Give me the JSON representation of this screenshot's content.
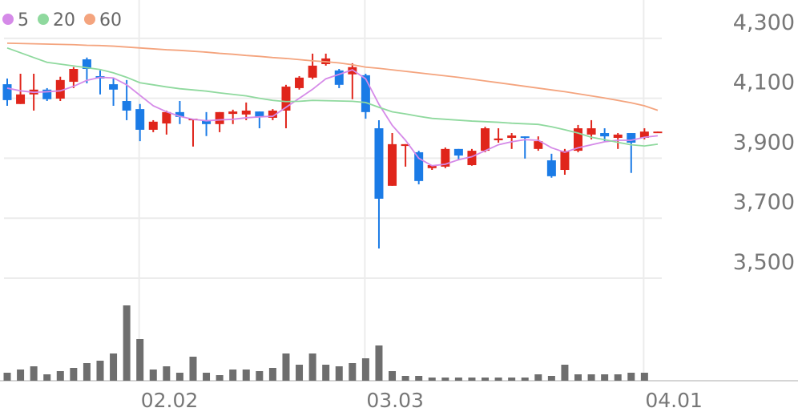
{
  "chart_data": {
    "type": "candlestick",
    "categories": [
      null,
      null,
      null,
      null,
      null,
      null,
      null,
      null,
      null,
      null,
      "02.02",
      null,
      null,
      null,
      null,
      null,
      null,
      null,
      null,
      null,
      null,
      null,
      null,
      null,
      null,
      null,
      null,
      "03.03",
      null,
      null,
      null,
      null,
      null,
      null,
      null,
      null,
      null,
      null,
      null,
      null,
      null,
      null,
      null,
      null,
      null,
      null,
      null,
      null,
      "04.01",
      null
    ],
    "open": [
      4147,
      4081,
      4113,
      4129,
      4099,
      4155,
      4230,
      4174,
      4147,
      4091,
      4064,
      3995,
      4016,
      4054,
      4027,
      4027,
      4014,
      4048,
      4046,
      4056,
      4035,
      4059,
      4134,
      4169,
      4214,
      4193,
      4180,
      4177,
      4000,
      3808,
      3941,
      3920,
      3867,
      3872,
      3931,
      3877,
      3925,
      3960,
      3968,
      3973,
      3931,
      3893,
      3861,
      3925,
      3979,
      3984,
      3968,
      3984,
      3968,
      3987
    ],
    "high": [
      4166,
      4182,
      4182,
      4134,
      4172,
      4204,
      4236,
      4193,
      4166,
      4161,
      4081,
      4027,
      4059,
      4091,
      4032,
      4054,
      4054,
      4062,
      4086,
      4056,
      4064,
      4145,
      4174,
      4249,
      4249,
      4198,
      4217,
      4182,
      4027,
      3984,
      3947,
      3925,
      3877,
      3936,
      3931,
      3931,
      4005,
      4000,
      3984,
      3973,
      3973,
      3915,
      3931,
      4011,
      4027,
      4000,
      3984,
      3984,
      4000,
      3989
    ],
    "low": [
      4075,
      4081,
      4059,
      4091,
      4091,
      4134,
      4150,
      4113,
      4075,
      4027,
      3957,
      3987,
      3979,
      4014,
      3939,
      3974,
      3987,
      4014,
      4027,
      4000,
      4027,
      4000,
      4129,
      4164,
      4209,
      4134,
      4097,
      4032,
      3599,
      3808,
      3872,
      3813,
      3861,
      3867,
      3893,
      3875,
      3920,
      3952,
      3931,
      3899,
      3925,
      3835,
      3845,
      3920,
      3963,
      3957,
      3931,
      3851,
      3963,
      3987
    ],
    "close": [
      4094,
      4113,
      4129,
      4097,
      4161,
      4198,
      4198,
      4166,
      4129,
      4059,
      3995,
      4022,
      4054,
      4038,
      4032,
      4014,
      4054,
      4056,
      4059,
      4038,
      4059,
      4139,
      4169,
      4209,
      4233,
      4145,
      4204,
      4054,
      3765,
      3947,
      3947,
      3824,
      3877,
      3931,
      3909,
      3925,
      4000,
      3966,
      3976,
      3968,
      3957,
      3840,
      3925,
      4000,
      4000,
      3973,
      3979,
      3952,
      3989,
      3989
    ],
    "up_color": "#e0251b",
    "down_color": "#1b7be6",
    "series": [
      {
        "name": "5",
        "color": "#d58ae8",
        "values": [
          4134,
          4125,
          4120,
          4122,
          4125,
          4140,
          4160,
          4170,
          4168,
          4145,
          4110,
          4075,
          4055,
          4040,
          4030,
          4025,
          4028,
          4030,
          4035,
          4038,
          4040,
          4070,
          4100,
          4130,
          4165,
          4180,
          4195,
          4165,
          4080,
          4010,
          3960,
          3900,
          3875,
          3880,
          3895,
          3905,
          3925,
          3945,
          3955,
          3962,
          3960,
          3935,
          3920,
          3935,
          3945,
          3955,
          3960,
          3960,
          3970,
          3975
        ]
      },
      {
        "name": "20",
        "color": "#8fd99e",
        "values": [
          4268,
          4252,
          4236,
          4220,
          4214,
          4208,
          4202,
          4196,
          4185,
          4170,
          4152,
          4145,
          4138,
          4132,
          4128,
          4124,
          4118,
          4113,
          4108,
          4100,
          4093,
          4089,
          4090,
          4093,
          4092,
          4091,
          4090,
          4086,
          4070,
          4055,
          4048,
          4040,
          4033,
          4030,
          4027,
          4024,
          4022,
          4020,
          4017,
          4015,
          4013,
          4005,
          3995,
          3984,
          3970,
          3962,
          3953,
          3945,
          3941,
          3947
        ]
      },
      {
        "name": "60",
        "color": "#f4a47e",
        "values": [
          4284,
          4283,
          4282,
          4281,
          4280,
          4279,
          4277,
          4276,
          4274,
          4271,
          4268,
          4265,
          4262,
          4260,
          4257,
          4254,
          4250,
          4247,
          4243,
          4240,
          4236,
          4233,
          4229,
          4225,
          4222,
          4218,
          4212,
          4204,
          4200,
          4195,
          4190,
          4185,
          4180,
          4175,
          4170,
          4164,
          4158,
          4152,
          4146,
          4140,
          4134,
          4128,
          4122,
          4115,
          4108,
          4101,
          4093,
          4085,
          4075,
          4060
        ]
      }
    ],
    "volume": [
      10,
      14,
      18,
      8,
      12,
      16,
      22,
      25,
      34,
      94,
      52,
      14,
      18,
      10,
      30,
      10,
      7,
      14,
      14,
      12,
      16,
      34,
      20,
      34,
      20,
      18,
      22,
      28,
      44,
      12,
      6,
      6,
      4,
      4,
      4,
      4,
      4,
      4,
      4,
      4,
      8,
      6,
      20,
      8,
      8,
      8,
      8,
      10,
      10,
      0
    ],
    "volume_color": "#6e6e6e",
    "vol_ylim": [
      0,
      125
    ],
    "ylim": [
      3500,
      4428
    ],
    "yticks": [
      {
        "value": 4300,
        "label": "4,300"
      },
      {
        "value": 4100,
        "label": "4,100"
      },
      {
        "value": 3900,
        "label": "3,900"
      },
      {
        "value": 3700,
        "label": "3,700"
      },
      {
        "value": 3500,
        "label": "3,500"
      }
    ],
    "grid": true
  }
}
